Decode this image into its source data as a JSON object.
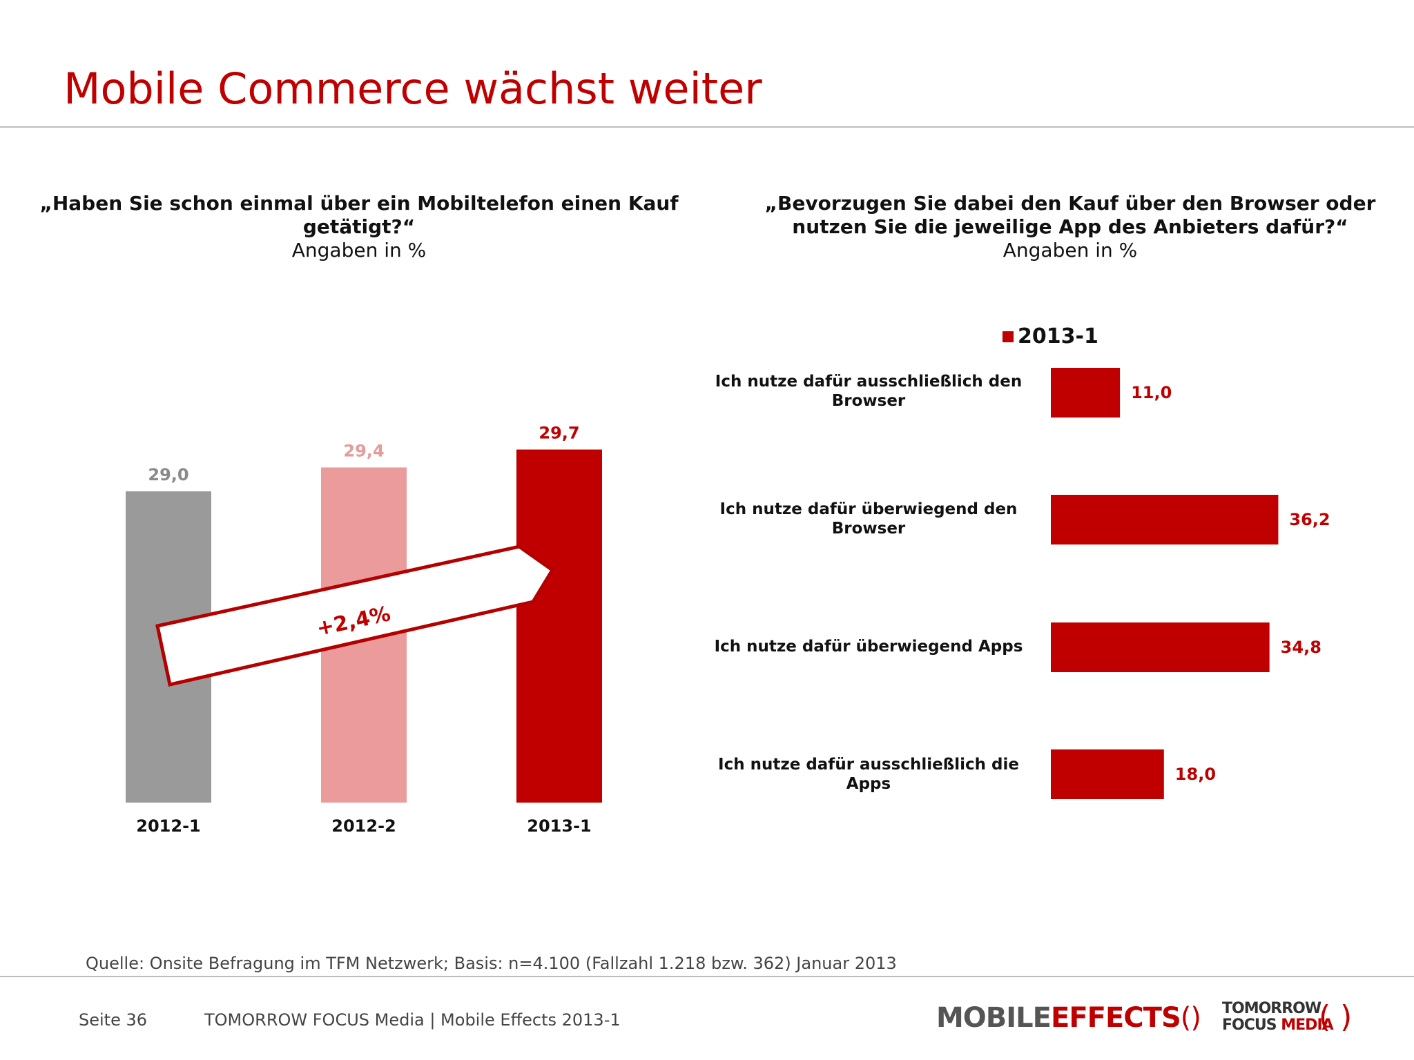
{
  "title": "Mobile Commerce wächst weiter",
  "left": {
    "question": "„Haben Sie schon einmal über ein Mobiltelefon einen Kauf getätigt?“",
    "unit": "Angaben in %",
    "arrow_label": "+2,4%"
  },
  "right": {
    "question": "„Bevorzugen Sie dabei den Kauf über den Browser oder nutzen Sie die jeweilige App des Anbieters dafür?“",
    "unit": "Angaben in %",
    "legend": "2013-1"
  },
  "chart_data": [
    {
      "type": "bar",
      "categories": [
        "2012-1",
        "2012-2",
        "2013-1"
      ],
      "values": [
        29.0,
        29.4,
        29.7
      ],
      "value_labels": [
        "29,0",
        "29,4",
        "29,7"
      ],
      "colors": [
        "#9b9a9b",
        "#ec9b9c",
        "#c00000"
      ],
      "label_colors": [
        "#8a8a8a",
        "#e89a9b",
        "#c00000"
      ]
    },
    {
      "type": "bar",
      "orientation": "horizontal",
      "series": [
        {
          "name": "2013-1",
          "values": [
            11.0,
            36.2,
            34.8,
            18.0
          ]
        }
      ],
      "categories": [
        "Ich nutze dafür ausschließlich den Browser",
        "Ich nutze dafür überwiegend den Browser",
        "Ich nutze dafür überwiegend Apps",
        "Ich nutze dafür ausschließlich die Apps"
      ],
      "value_labels": [
        "11,0",
        "36,2",
        "34,8",
        "18,0"
      ],
      "color": "#c00000"
    }
  ],
  "source": "Quelle: Onsite Befragung im TFM Netzwerk; Basis: n=4.100 (Fallzahl 1.218 bzw. 362) Januar 2013",
  "footer": {
    "page": "Seite 36",
    "publisher": "TOMORROW FOCUS Media  |  Mobile Effects 2013-1"
  },
  "brand": {
    "mobile": "MOBILE",
    "effects": "EFFECTS",
    "tf_line1": "TOMORROW",
    "tf_focus": "FOCUS",
    "tf_media": "MEDIA"
  }
}
